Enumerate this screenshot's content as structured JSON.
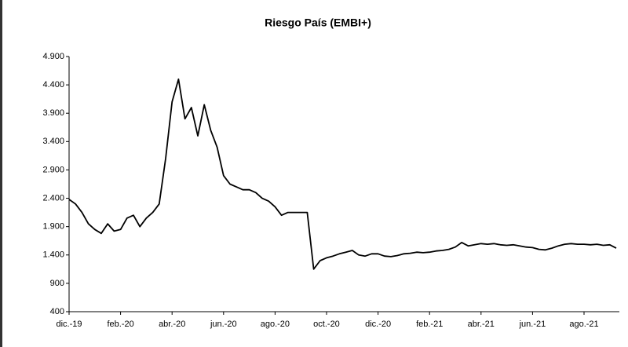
{
  "chart_data": {
    "type": "line",
    "title": "Riesgo País (EMBI+)",
    "categories": [
      "dic.-19",
      null,
      null,
      null,
      null,
      null,
      null,
      null,
      "feb.-20",
      null,
      null,
      null,
      null,
      null,
      null,
      null,
      "abr.-20",
      null,
      null,
      null,
      null,
      null,
      null,
      null,
      "jun.-20",
      null,
      null,
      null,
      null,
      null,
      null,
      null,
      "ago.-20",
      null,
      null,
      null,
      null,
      null,
      null,
      null,
      "oct.-20",
      null,
      null,
      null,
      null,
      null,
      null,
      null,
      "dic.-20",
      null,
      null,
      null,
      null,
      null,
      null,
      null,
      "feb.-21",
      null,
      null,
      null,
      null,
      null,
      null,
      null,
      "abr.-21",
      null,
      null,
      null,
      null,
      null,
      null,
      null,
      "jun.-21",
      null,
      null,
      null,
      null,
      null,
      null,
      null,
      "ago.-21",
      null,
      null,
      null,
      null,
      null
    ],
    "series": [
      {
        "name": "EMBI+",
        "color": "#000000",
        "values": [
          2380,
          2300,
          2150,
          1950,
          1850,
          1780,
          1950,
          1820,
          1850,
          2050,
          2100,
          1900,
          2050,
          2150,
          2300,
          3100,
          4100,
          4500,
          3800,
          4000,
          3500,
          4050,
          3600,
          3300,
          2800,
          2650,
          2600,
          2550,
          2550,
          2500,
          2400,
          2350,
          2250,
          2100,
          2150,
          2150,
          2150,
          2150,
          1150,
          1300,
          1350,
          1380,
          1420,
          1450,
          1480,
          1400,
          1380,
          1420,
          1420,
          1380,
          1370,
          1390,
          1420,
          1430,
          1450,
          1440,
          1450,
          1470,
          1480,
          1500,
          1540,
          1620,
          1560,
          1580,
          1600,
          1590,
          1600,
          1580,
          1570,
          1580,
          1560,
          1540,
          1530,
          1500,
          1490,
          1520,
          1560,
          1590,
          1600,
          1590,
          1590,
          1580,
          1590,
          1570,
          1580,
          1520
        ]
      }
    ],
    "ylim": [
      400,
      4900
    ],
    "yticks": [
      400,
      900,
      {
        "value": 1400,
        "label": "1.400"
      },
      {
        "value": 1900,
        "label": "1.900"
      },
      {
        "value": 2400,
        "label": "2.400"
      },
      {
        "value": 2900,
        "label": "2.900"
      },
      {
        "value": 3400,
        "label": "3.400"
      },
      {
        "value": 3900,
        "label": "3.900"
      },
      {
        "value": 4400,
        "label": "4.400"
      },
      {
        "value": 4900,
        "label": "4.900"
      }
    ],
    "grid": false
  }
}
